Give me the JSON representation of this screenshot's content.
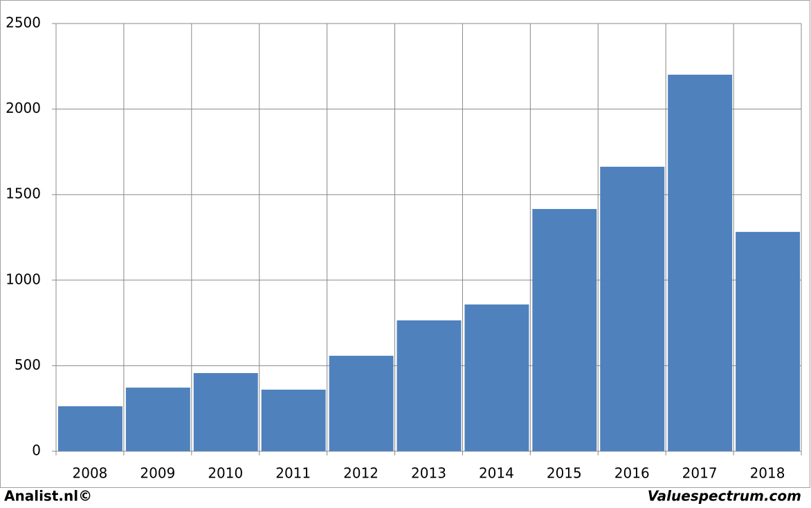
{
  "chart_data": {
    "type": "bar",
    "categories": [
      "2008",
      "2009",
      "2010",
      "2011",
      "2012",
      "2013",
      "2014",
      "2015",
      "2016",
      "2017",
      "2018"
    ],
    "values": [
      263,
      372,
      457,
      360,
      558,
      765,
      858,
      1416,
      1663,
      2201,
      1282
    ],
    "color": "#4f81bd",
    "ylim": [
      0,
      2500
    ],
    "yticks": [
      0,
      500,
      1000,
      1500,
      2000,
      2500
    ],
    "grid": true
  },
  "footer": {
    "left": "Analist.nl©",
    "right": "Valuespectrum.com"
  }
}
